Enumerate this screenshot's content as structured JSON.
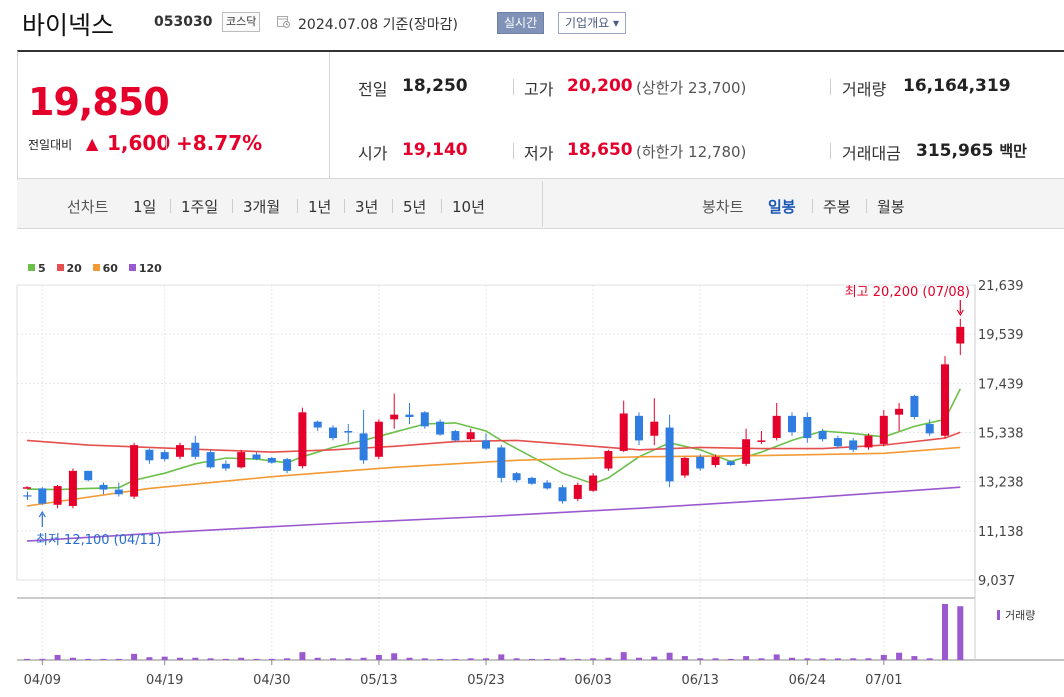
{
  "header": {
    "name": "바이넥스",
    "code": "053030",
    "market": "코스닥",
    "date": "2024.07.08",
    "basis": "기준(장마감)",
    "realtime_btn": "실시간",
    "company_btn": "기업개요 ▾"
  },
  "quote": {
    "price": "19,850",
    "change_label": "전일대비",
    "change_arrow": "▲",
    "change": "1,600",
    "change_pct": "+8.77%",
    "prev_label": "전일",
    "prev": "18,250",
    "open_label": "시가",
    "open": "19,140",
    "high_label": "고가",
    "high": "20,200",
    "upper_label": "(상한가",
    "upper": "23,700)",
    "low_label": "저가",
    "low": "18,650",
    "lower_label": "(하한가",
    "lower": "12,780)",
    "volume_label": "거래량",
    "volume": "16,164,319",
    "amount_label": "거래대금",
    "amount": "315,965",
    "amount_unit": "백만"
  },
  "tabs": {
    "line_label": "선차트",
    "periods": [
      "1일",
      "1주일",
      "3개월",
      "1년",
      "3년",
      "5년",
      "10년"
    ],
    "candle_label": "봉차트",
    "candle": [
      "일봉",
      "주봉",
      "월봉"
    ],
    "active_candle": "일봉"
  },
  "legend": [
    {
      "name": "5",
      "color": "#6cc04a"
    },
    {
      "name": "20",
      "color": "#e5504f"
    },
    {
      "name": "60",
      "color": "#f39a34"
    },
    {
      "name": "120",
      "color": "#9b59d0"
    }
  ],
  "colors": {
    "up": "#e4002b",
    "down": "#2f7de1",
    "volume": "#9b59d0",
    "grid": "#e6e6e6"
  },
  "chart_data": {
    "type": "candlestick",
    "y_ticks": [
      "21,639",
      "19,539",
      "17,439",
      "15,338",
      "13,238",
      "11,138",
      "9,037"
    ],
    "ylim": [
      9037,
      21639
    ],
    "x_tick_labels": [
      "04/09",
      "04/19",
      "04/30",
      "05/13",
      "05/23",
      "06/03",
      "06/13",
      "06/24",
      "07/01"
    ],
    "max_annotation": "최고 20,200 (07/08)",
    "min_annotation": "최저 12,100 (04/11)",
    "volume_label": "거래량",
    "candles": [
      {
        "date": "04/08",
        "o": 13000,
        "h": 13050,
        "l": 12950,
        "c": 13000
      },
      {
        "date": "04/09",
        "o": 12950,
        "h": 13000,
        "l": 12250,
        "c": 12300
      },
      {
        "date": "04/10",
        "o": 12250,
        "h": 13100,
        "l": 12100,
        "c": 13050
      },
      {
        "date": "04/11",
        "o": 12200,
        "h": 13800,
        "l": 12100,
        "c": 13700
      },
      {
        "date": "04/12",
        "o": 13700,
        "h": 13700,
        "l": 13250,
        "c": 13300
      },
      {
        "date": "04/15",
        "o": 13100,
        "h": 13200,
        "l": 12700,
        "c": 12900
      },
      {
        "date": "04/16",
        "o": 12900,
        "h": 13200,
        "l": 12600,
        "c": 12700
      },
      {
        "date": "04/17",
        "o": 12600,
        "h": 14900,
        "l": 12500,
        "c": 14800
      },
      {
        "date": "04/18",
        "o": 14600,
        "h": 14650,
        "l": 14000,
        "c": 14150
      },
      {
        "date": "04/19",
        "o": 14500,
        "h": 14600,
        "l": 14100,
        "c": 14200
      },
      {
        "date": "04/22",
        "o": 14300,
        "h": 14900,
        "l": 14200,
        "c": 14800
      },
      {
        "date": "04/23",
        "o": 14900,
        "h": 15200,
        "l": 14200,
        "c": 14300
      },
      {
        "date": "04/24",
        "o": 14500,
        "h": 14600,
        "l": 13800,
        "c": 13850
      },
      {
        "date": "04/25",
        "o": 14000,
        "h": 14150,
        "l": 13700,
        "c": 13800
      },
      {
        "date": "04/26",
        "o": 13850,
        "h": 14600,
        "l": 13800,
        "c": 14500
      },
      {
        "date": "04/29",
        "o": 14400,
        "h": 14500,
        "l": 14150,
        "c": 14200
      },
      {
        "date": "04/30",
        "o": 14250,
        "h": 14300,
        "l": 14000,
        "c": 14050
      },
      {
        "date": "05/02",
        "o": 14200,
        "h": 14250,
        "l": 13600,
        "c": 13700
      },
      {
        "date": "05/03",
        "o": 13900,
        "h": 16400,
        "l": 13800,
        "c": 16200
      },
      {
        "date": "05/07",
        "o": 15800,
        "h": 15850,
        "l": 15400,
        "c": 15550
      },
      {
        "date": "05/08",
        "o": 15550,
        "h": 15650,
        "l": 15000,
        "c": 15100
      },
      {
        "date": "05/09",
        "o": 15400,
        "h": 15700,
        "l": 14900,
        "c": 15350
      },
      {
        "date": "05/10",
        "o": 15300,
        "h": 16300,
        "l": 14000,
        "c": 14150
      },
      {
        "date": "05/13",
        "o": 14300,
        "h": 15900,
        "l": 14200,
        "c": 15800
      },
      {
        "date": "05/14",
        "o": 15900,
        "h": 17000,
        "l": 15500,
        "c": 16100
      },
      {
        "date": "05/16",
        "o": 16100,
        "h": 16600,
        "l": 15700,
        "c": 16000
      },
      {
        "date": "05/17",
        "o": 16200,
        "h": 16250,
        "l": 15500,
        "c": 15600
      },
      {
        "date": "05/20",
        "o": 15800,
        "h": 15900,
        "l": 15200,
        "c": 15250
      },
      {
        "date": "05/21",
        "o": 15400,
        "h": 15450,
        "l": 14950,
        "c": 15000
      },
      {
        "date": "05/22",
        "o": 15050,
        "h": 15500,
        "l": 14950,
        "c": 15350
      },
      {
        "date": "05/23",
        "o": 15000,
        "h": 15300,
        "l": 14600,
        "c": 14650
      },
      {
        "date": "05/24",
        "o": 14700,
        "h": 14800,
        "l": 13200,
        "c": 13400
      },
      {
        "date": "05/27",
        "o": 13600,
        "h": 13650,
        "l": 13200,
        "c": 13300
      },
      {
        "date": "05/28",
        "o": 13400,
        "h": 13450,
        "l": 13100,
        "c": 13150
      },
      {
        "date": "05/29",
        "o": 13200,
        "h": 13300,
        "l": 12900,
        "c": 12950
      },
      {
        "date": "05/30",
        "o": 13000,
        "h": 13100,
        "l": 12300,
        "c": 12400
      },
      {
        "date": "05/31",
        "o": 12500,
        "h": 13200,
        "l": 12400,
        "c": 13100
      },
      {
        "date": "06/03",
        "o": 12850,
        "h": 13600,
        "l": 12800,
        "c": 13500
      },
      {
        "date": "06/04",
        "o": 13800,
        "h": 14600,
        "l": 13700,
        "c": 14550
      },
      {
        "date": "06/05",
        "o": 14550,
        "h": 16700,
        "l": 14500,
        "c": 16150
      },
      {
        "date": "06/07",
        "o": 16050,
        "h": 16200,
        "l": 14800,
        "c": 15000
      },
      {
        "date": "06/10",
        "o": 15200,
        "h": 16800,
        "l": 14800,
        "c": 15800
      },
      {
        "date": "06/11",
        "o": 15550,
        "h": 16100,
        "l": 13000,
        "c": 13250
      },
      {
        "date": "06/12",
        "o": 13500,
        "h": 14300,
        "l": 13400,
        "c": 14250
      },
      {
        "date": "06/13",
        "o": 14300,
        "h": 14400,
        "l": 13700,
        "c": 13800
      },
      {
        "date": "06/14",
        "o": 13950,
        "h": 14400,
        "l": 13850,
        "c": 14300
      },
      {
        "date": "06/17",
        "o": 14100,
        "h": 14150,
        "l": 13900,
        "c": 13950
      },
      {
        "date": "06/18",
        "o": 14000,
        "h": 15500,
        "l": 13900,
        "c": 15050
      },
      {
        "date": "06/19",
        "o": 15000,
        "h": 15400,
        "l": 14850,
        "c": 15000
      },
      {
        "date": "06/20",
        "o": 15100,
        "h": 16600,
        "l": 15000,
        "c": 16050
      },
      {
        "date": "06/21",
        "o": 16050,
        "h": 16200,
        "l": 15200,
        "c": 15350
      },
      {
        "date": "06/24",
        "o": 16000,
        "h": 16200,
        "l": 14900,
        "c": 15100
      },
      {
        "date": "06/25",
        "o": 15400,
        "h": 15500,
        "l": 14950,
        "c": 15050
      },
      {
        "date": "06/26",
        "o": 15100,
        "h": 15200,
        "l": 14650,
        "c": 14750
      },
      {
        "date": "06/27",
        "o": 15000,
        "h": 15100,
        "l": 14500,
        "c": 14600
      },
      {
        "date": "06/28",
        "o": 14700,
        "h": 15300,
        "l": 14600,
        "c": 15200
      },
      {
        "date": "07/01",
        "o": 14850,
        "h": 16300,
        "l": 14750,
        "c": 16050
      },
      {
        "date": "07/02",
        "o": 16100,
        "h": 16600,
        "l": 15400,
        "c": 16350
      },
      {
        "date": "07/03",
        "o": 16900,
        "h": 16950,
        "l": 15900,
        "c": 16000
      },
      {
        "date": "07/04",
        "o": 15700,
        "h": 15900,
        "l": 15200,
        "c": 15300
      },
      {
        "date": "07/05",
        "o": 15200,
        "h": 18600,
        "l": 15100,
        "c": 18250
      },
      {
        "date": "07/08",
        "o": 19140,
        "h": 20200,
        "l": 18650,
        "c": 19850
      }
    ],
    "volume": [
      0.2,
      0.2,
      0.9,
      0.4,
      0.2,
      0.2,
      0.2,
      1.1,
      0.5,
      0.6,
      0.4,
      0.4,
      0.3,
      0.2,
      0.4,
      0.2,
      0.2,
      0.3,
      1.4,
      0.4,
      0.3,
      0.3,
      0.4,
      0.9,
      1.2,
      0.4,
      0.3,
      0.2,
      0.2,
      0.3,
      0.3,
      1.0,
      0.3,
      0.2,
      0.2,
      0.4,
      0.2,
      0.3,
      0.4,
      1.4,
      0.4,
      0.6,
      1.3,
      0.7,
      0.3,
      0.3,
      0.2,
      0.7,
      0.3,
      1.0,
      0.4,
      0.3,
      0.3,
      0.3,
      0.3,
      0.3,
      0.9,
      1.3,
      0.7,
      0.3,
      10.0,
      9.6
    ],
    "ma": {
      "5": [
        [
          0,
          12920
        ],
        [
          2,
          12900
        ],
        [
          4,
          12950
        ],
        [
          6,
          12980
        ],
        [
          7,
          13300
        ],
        [
          9,
          13600
        ],
        [
          11,
          14000
        ],
        [
          13,
          14250
        ],
        [
          15,
          14200
        ],
        [
          17,
          14050
        ],
        [
          18,
          14300
        ],
        [
          20,
          14700
        ],
        [
          22,
          15000
        ],
        [
          24,
          15350
        ],
        [
          26,
          15700
        ],
        [
          28,
          15750
        ],
        [
          30,
          15400
        ],
        [
          31,
          15000
        ],
        [
          33,
          14300
        ],
        [
          35,
          13600
        ],
        [
          37,
          13150
        ],
        [
          38,
          13400
        ],
        [
          40,
          14300
        ],
        [
          42,
          14900
        ],
        [
          44,
          14600
        ],
        [
          46,
          14100
        ],
        [
          48,
          14500
        ],
        [
          50,
          15000
        ],
        [
          52,
          15400
        ],
        [
          54,
          15300
        ],
        [
          56,
          15150
        ],
        [
          58,
          15600
        ],
        [
          60,
          15900
        ],
        [
          61,
          17200
        ]
      ],
      "20": [
        [
          0,
          15000
        ],
        [
          4,
          14800
        ],
        [
          8,
          14700
        ],
        [
          12,
          14600
        ],
        [
          16,
          14500
        ],
        [
          20,
          14600
        ],
        [
          24,
          14750
        ],
        [
          28,
          14950
        ],
        [
          32,
          15000
        ],
        [
          36,
          14800
        ],
        [
          40,
          14600
        ],
        [
          44,
          14700
        ],
        [
          48,
          14650
        ],
        [
          52,
          14650
        ],
        [
          56,
          14800
        ],
        [
          60,
          15100
        ],
        [
          61,
          15350
        ]
      ],
      "60": [
        [
          0,
          12200
        ],
        [
          8,
          12950
        ],
        [
          16,
          13450
        ],
        [
          24,
          13850
        ],
        [
          32,
          14150
        ],
        [
          40,
          14300
        ],
        [
          48,
          14350
        ],
        [
          56,
          14450
        ],
        [
          61,
          14700
        ]
      ],
      "120": [
        [
          0,
          10700
        ],
        [
          10,
          11100
        ],
        [
          20,
          11450
        ],
        [
          30,
          11750
        ],
        [
          40,
          12100
        ],
        [
          50,
          12500
        ],
        [
          61,
          13000
        ]
      ]
    }
  }
}
